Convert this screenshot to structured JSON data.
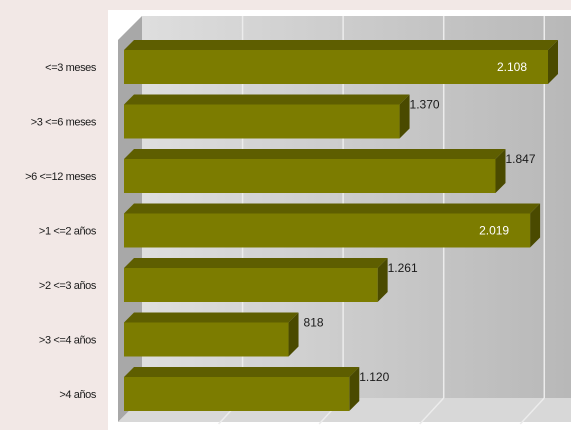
{
  "chart_data": {
    "type": "bar",
    "orientation": "horizontal",
    "three_d": true,
    "categories": [
      "<=3 meses",
      ">3 <=6 meses",
      ">6 <=12 meses",
      ">1 <=2 años",
      ">2 <=3 años",
      ">3 <=4 años",
      ">4 años"
    ],
    "values": [
      2108,
      1370,
      1847,
      2019,
      1261,
      818,
      1120
    ],
    "value_labels": [
      "2.108",
      "1.370",
      "1.847",
      "2.019",
      "1.261",
      "818",
      "1.120"
    ],
    "xlim": [
      0,
      2500
    ],
    "grid": true,
    "legend": "none",
    "title": "",
    "xlabel": "",
    "ylabel": ""
  },
  "colors": {
    "bar_front": "#7c7c00",
    "bar_top": "#5e5e00",
    "bar_side": "#4a4a00",
    "plot_wall": "#c4c4c4",
    "grid": "#ececec",
    "label_inside": "#ffffff",
    "label_outside": "#1a1a1a"
  }
}
